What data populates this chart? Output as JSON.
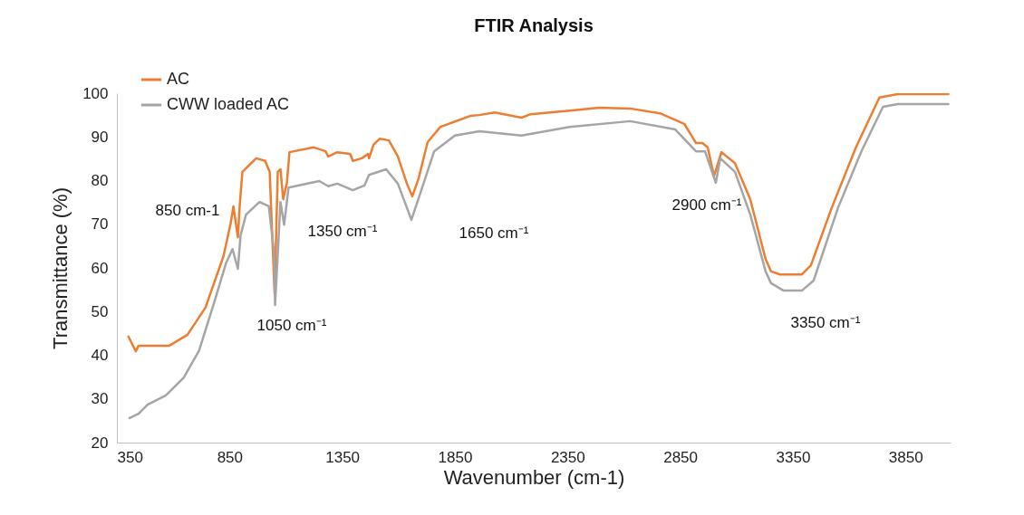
{
  "chart_data": {
    "type": "line",
    "title": "FTIR Analysis",
    "xlabel": "Wavenumber (cm-1)",
    "ylabel": "Transmittance (%)",
    "xlim": [
      350,
      4050
    ],
    "xticks": [
      350,
      850,
      1350,
      1850,
      2350,
      2850,
      3350,
      3850
    ],
    "ylim": [
      20,
      100
    ],
    "yticks": [
      20,
      30,
      40,
      50,
      60,
      70,
      80,
      90,
      100
    ],
    "grid": false,
    "legend": "top left",
    "line_style": "solid",
    "series": [
      {
        "name": "AC",
        "color": "#ed7d31",
        "x": [
          401,
          434,
          446,
          583,
          663,
          743,
          823,
          855,
          867,
          887,
          895,
          907,
          968,
          1008,
          1028,
          1050,
          1064,
          1076,
          1088,
          1104,
          1116,
          1224,
          1276,
          1288,
          1328,
          1385,
          1397,
          1437,
          1465,
          1469,
          1489,
          1517,
          1557,
          1597,
          1637,
          1661,
          1689,
          1729,
          1786,
          1918,
          1958,
          2026,
          2146,
          2186,
          2359,
          2491,
          2628,
          2760,
          2868,
          2920,
          2948,
          2972,
          3000,
          3033,
          3093,
          3161,
          3229,
          3253,
          3293,
          3390,
          3430,
          3522,
          3630,
          3734,
          3815,
          4040
        ],
        "values": [
          44.3,
          40.9,
          42.2,
          42.2,
          44.7,
          50.9,
          62.7,
          70.2,
          74.1,
          67,
          74.3,
          82,
          85.1,
          84.5,
          82,
          54,
          82,
          82.6,
          75.7,
          79.3,
          86.5,
          87.6,
          86.7,
          85.5,
          86.5,
          86.1,
          84.5,
          85.1,
          86.1,
          85.1,
          88.2,
          89.6,
          89.2,
          85.5,
          79.3,
          76.4,
          80.5,
          88.8,
          92.3,
          94.8,
          95,
          95.6,
          94.4,
          95.2,
          96,
          96.7,
          96.5,
          95.4,
          93,
          88.6,
          88.6,
          87.6,
          81,
          86.5,
          84,
          75.7,
          62,
          59.2,
          58.5,
          58.5,
          60.6,
          73.7,
          87.6,
          99,
          99.8,
          99.8
        ]
      },
      {
        "name": "CWW loaded AC",
        "color": "#a5a5a5",
        "x": [
          406,
          446,
          486,
          567,
          647,
          715,
          783,
          835,
          863,
          887,
          899,
          923,
          983,
          1024,
          1048,
          1052,
          1064,
          1076,
          1092,
          1112,
          1248,
          1288,
          1328,
          1397,
          1449,
          1469,
          1545,
          1597,
          1657,
          1705,
          1758,
          1850,
          1958,
          2146,
          2359,
          2628,
          2828,
          2920,
          2960,
          3008,
          3028,
          3093,
          3161,
          3229,
          3253,
          3309,
          3390,
          3442,
          3550,
          3654,
          3750,
          3815,
          4040
        ],
        "values": [
          25.6,
          26.6,
          28.7,
          30.8,
          34.9,
          41.1,
          52.3,
          61.2,
          64.3,
          59.8,
          67.5,
          72.2,
          75.1,
          74.1,
          63.3,
          51.5,
          63.3,
          75.1,
          69.9,
          78.4,
          79.9,
          78.7,
          79.3,
          77.8,
          78.9,
          81.3,
          82.6,
          79.3,
          71,
          78.4,
          86.7,
          90.3,
          91.3,
          90.3,
          92.3,
          93.6,
          91.7,
          86.7,
          86.7,
          79.5,
          85.1,
          82,
          72.2,
          59.2,
          56.5,
          54.8,
          54.8,
          57.1,
          73.7,
          86.7,
          96.9,
          97.5,
          97.5
        ]
      }
    ],
    "annotations": [
      "850 cm-1",
      "1050 cm⁻¹",
      "1350 cm⁻¹",
      "1650 cm⁻¹",
      "2900 cm⁻¹",
      "3350 cm⁻¹"
    ]
  }
}
